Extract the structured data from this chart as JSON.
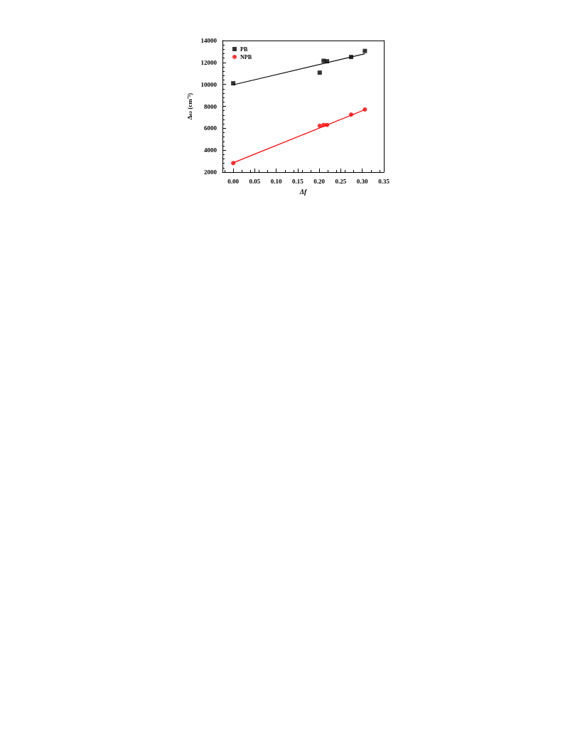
{
  "chart_data": {
    "type": "scatter",
    "xlabel": "Δf",
    "ylabel": "Δω (cm⁻¹)",
    "xlim": [
      -0.025,
      0.35
    ],
    "xticks": [
      {
        "value": 0,
        "label": "0.00"
      },
      {
        "value": 0.05,
        "label": "0.05"
      },
      {
        "value": 0.1,
        "label": "0.10"
      },
      {
        "value": 0.15,
        "label": "0.15"
      },
      {
        "value": 0.2,
        "label": "0.20"
      },
      {
        "value": 0.25,
        "label": "0.25"
      },
      {
        "value": 0.3,
        "label": "0.30"
      },
      {
        "value": 0.35,
        "label": "0.35"
      }
    ],
    "ylim": [
      2000,
      14000
    ],
    "yticks": [
      2000,
      4000,
      6000,
      8000,
      10000,
      12000,
      14000
    ],
    "grid": false,
    "legend": "top left",
    "series": [
      {
        "name": "PB",
        "marker": "square",
        "color": "#000000",
        "x": [
          0,
          0.201,
          0.21,
          0.218,
          0.274,
          0.306
        ],
        "values": [
          10100,
          11070,
          12150,
          12110,
          12500,
          13050
        ]
      },
      {
        "name": "NPB",
        "marker": "circle",
        "color": "#ff0000",
        "x": [
          0,
          0.201,
          0.21,
          0.218,
          0.274,
          0.306
        ],
        "values": [
          2820,
          6230,
          6300,
          6300,
          7250,
          7710
        ]
      },
      {
        "type": "line",
        "marker": "none",
        "color": "#000000",
        "x": [
          0,
          0.306
        ],
        "values": [
          9960,
          12790
        ]
      },
      {
        "type": "line",
        "marker": "none",
        "color": "#ff0000",
        "x": [
          0,
          0.306
        ],
        "values": [
          2850,
          7690
        ]
      }
    ]
  }
}
